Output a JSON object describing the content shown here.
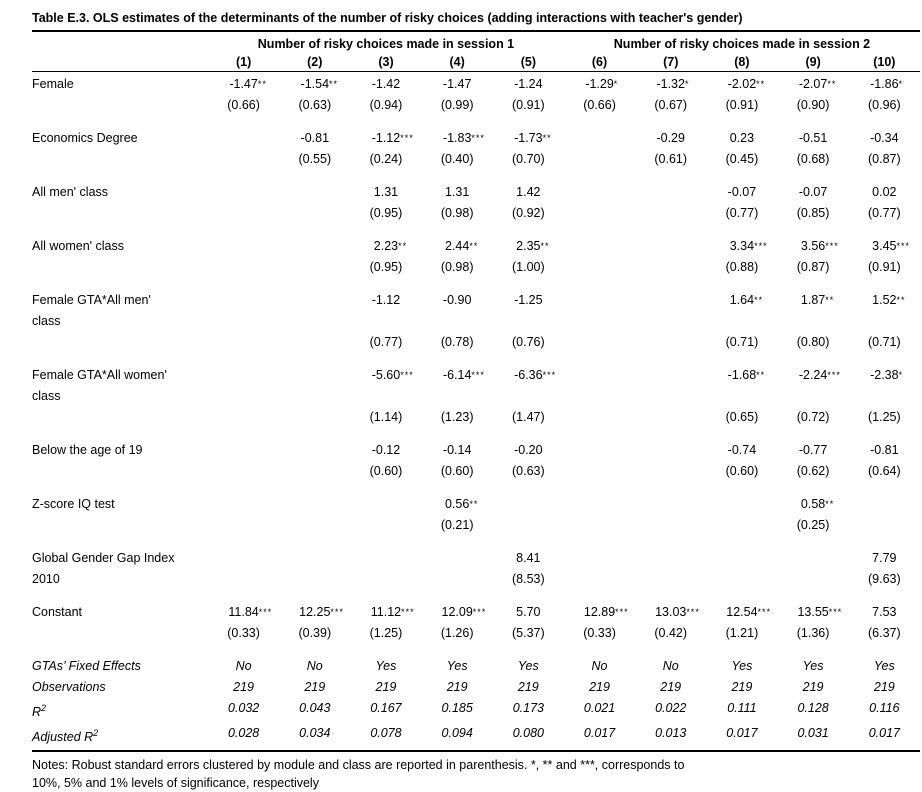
{
  "title": "Table E.3. OLS estimates of the determinants of the number of risky choices (adding interactions with teacher's gender)",
  "table": {
    "group_headers": [
      {
        "label": "Number of risky choices made in session 1",
        "span": 5
      },
      {
        "label": "Number of risky choices made in session 2",
        "span": 5
      }
    ],
    "col_numbers": [
      "(1)",
      "(2)",
      "(3)",
      "(4)",
      "(5)",
      "(6)",
      "(7)",
      "(8)",
      "(9)",
      "(10)"
    ],
    "rows": [
      {
        "label": "Female",
        "coefs": [
          "-1.47",
          "-1.54",
          "-1.42",
          "-1.47",
          "-1.24",
          "-1.29",
          "-1.32",
          "-2.02",
          "-2.07",
          "-1.86"
        ],
        "stars": [
          "**",
          "**",
          "",
          "",
          "",
          "*",
          "*",
          "**",
          "**",
          "*"
        ],
        "ses": [
          "(0.66)",
          "(0.63)",
          "(0.94)",
          "(0.99)",
          "(0.91)",
          "(0.66)",
          "(0.67)",
          "(0.91)",
          "(0.90)",
          "(0.96)"
        ]
      },
      {
        "label": "Economics Degree",
        "coefs": [
          "",
          "-0.81",
          "-1.12",
          "-1.83",
          "-1.73",
          "",
          "-0.29",
          "0.23",
          "-0.51",
          "-0.34"
        ],
        "stars": [
          "",
          "",
          "***",
          "***",
          "**",
          "",
          "",
          "",
          "",
          ""
        ],
        "ses": [
          "",
          "(0.55)",
          "(0.24)",
          "(0.40)",
          "(0.70)",
          "",
          "(0.61)",
          "(0.45)",
          "(0.68)",
          "(0.87)"
        ]
      },
      {
        "label": "All men' class",
        "coefs": [
          "",
          "",
          "1.31",
          "1.31",
          "1.42",
          "",
          "",
          "-0.07",
          "-0.07",
          "0.02"
        ],
        "stars": [
          "",
          "",
          "",
          "",
          "",
          "",
          "",
          "",
          "",
          ""
        ],
        "ses": [
          "",
          "",
          "(0.95)",
          "(0.98)",
          "(0.92)",
          "",
          "",
          "(0.77)",
          "(0.85)",
          "(0.77)"
        ]
      },
      {
        "label": "All women' class",
        "coefs": [
          "",
          "",
          "2.23",
          "2.44",
          "2.35",
          "",
          "",
          "3.34",
          "3.56",
          "3.45"
        ],
        "stars": [
          "",
          "",
          "**",
          "**",
          "**",
          "",
          "",
          "***",
          "***",
          "***"
        ],
        "ses": [
          "",
          "",
          "(0.95)",
          "(0.98)",
          "(1.00)",
          "",
          "",
          "(0.88)",
          "(0.87)",
          "(0.91)"
        ]
      },
      {
        "label": "Female GTA*All men'",
        "label2": "class",
        "se_gap": true,
        "coefs": [
          "",
          "",
          "-1.12",
          "-0.90",
          "-1.25",
          "",
          "",
          "1.64",
          "1.87",
          "1.52"
        ],
        "stars": [
          "",
          "",
          "",
          "",
          "",
          "",
          "",
          "**",
          "**",
          "**"
        ],
        "ses": [
          "",
          "",
          "(0.77)",
          "(0.78)",
          "(0.76)",
          "",
          "",
          "(0.71)",
          "(0.80)",
          "(0.71)"
        ]
      },
      {
        "label": "Female GTA*All women'",
        "label2": "class",
        "se_gap": true,
        "coefs": [
          "",
          "",
          "-5.60",
          "-6.14",
          "-6.36",
          "",
          "",
          "-1.68",
          "-2.24",
          "-2.38"
        ],
        "stars": [
          "",
          "",
          "***",
          "***",
          "***",
          "",
          "",
          "**",
          "***",
          "*"
        ],
        "ses": [
          "",
          "",
          "(1.14)",
          "(1.23)",
          "(1.47)",
          "",
          "",
          "(0.65)",
          "(0.72)",
          "(1.25)"
        ]
      },
      {
        "label": "Below the age of 19",
        "coefs": [
          "",
          "",
          "-0.12",
          "-0.14",
          "-0.20",
          "",
          "",
          "-0.74",
          "-0.77",
          "-0.81"
        ],
        "stars": [
          "",
          "",
          "",
          "",
          "",
          "",
          "",
          "",
          "",
          ""
        ],
        "ses": [
          "",
          "",
          "(0.60)",
          "(0.60)",
          "(0.63)",
          "",
          "",
          "(0.60)",
          "(0.62)",
          "(0.64)"
        ]
      },
      {
        "label": "Z-score IQ test",
        "coefs": [
          "",
          "",
          "",
          "0.56",
          "",
          "",
          "",
          "",
          "0.58",
          ""
        ],
        "stars": [
          "",
          "",
          "",
          "**",
          "",
          "",
          "",
          "",
          "**",
          ""
        ],
        "ses": [
          "",
          "",
          "",
          "(0.21)",
          "",
          "",
          "",
          "",
          "(0.25)",
          ""
        ]
      },
      {
        "label": "Global Gender Gap Index",
        "label2": "2010",
        "coefs": [
          "",
          "",
          "",
          "",
          "8.41",
          "",
          "",
          "",
          "",
          "7.79"
        ],
        "stars": [
          "",
          "",
          "",
          "",
          "",
          "",
          "",
          "",
          "",
          ""
        ],
        "ses": [
          "",
          "",
          "",
          "",
          "(8.53)",
          "",
          "",
          "",
          "",
          "(9.63)"
        ]
      },
      {
        "label": "Constant",
        "coefs": [
          "11.84",
          "12.25",
          "11.12",
          "12.09",
          "5.70",
          "12.89",
          "13.03",
          "12.54",
          "13.55",
          "7.53"
        ],
        "stars": [
          "***",
          "***",
          "***",
          "***",
          "",
          "***",
          "***",
          "***",
          "***",
          ""
        ],
        "ses": [
          "(0.33)",
          "(0.39)",
          "(1.25)",
          "(1.26)",
          "(5.37)",
          "(0.33)",
          "(0.42)",
          "(1.21)",
          "(1.36)",
          "(6.37)"
        ]
      }
    ],
    "stats_rows": [
      {
        "label": "GTAs’ Fixed Effects",
        "values": [
          "No",
          "No",
          "Yes",
          "Yes",
          "Yes",
          "No",
          "No",
          "Yes",
          "Yes",
          "Yes"
        ]
      },
      {
        "label": "Observations",
        "values": [
          "219",
          "219",
          "219",
          "219",
          "219",
          "219",
          "219",
          "219",
          "219",
          "219"
        ]
      },
      {
        "label": "R",
        "label_sup": "2",
        "values": [
          "0.032",
          "0.043",
          "0.167",
          "0.185",
          "0.173",
          "0.021",
          "0.022",
          "0.111",
          "0.128",
          "0.116"
        ]
      },
      {
        "label": "Adjusted R",
        "label_sup": "2",
        "values": [
          "0.028",
          "0.034",
          "0.078",
          "0.094",
          "0.080",
          "0.017",
          "0.013",
          "0.017",
          "0.031",
          "0.017"
        ]
      }
    ]
  },
  "notes_line1": "Notes: Robust standard errors clustered by module and class are reported in parenthesis. *, ** and ***, corresponds to",
  "notes_line2": "10%, 5% and 1% levels of significance, respectively"
}
